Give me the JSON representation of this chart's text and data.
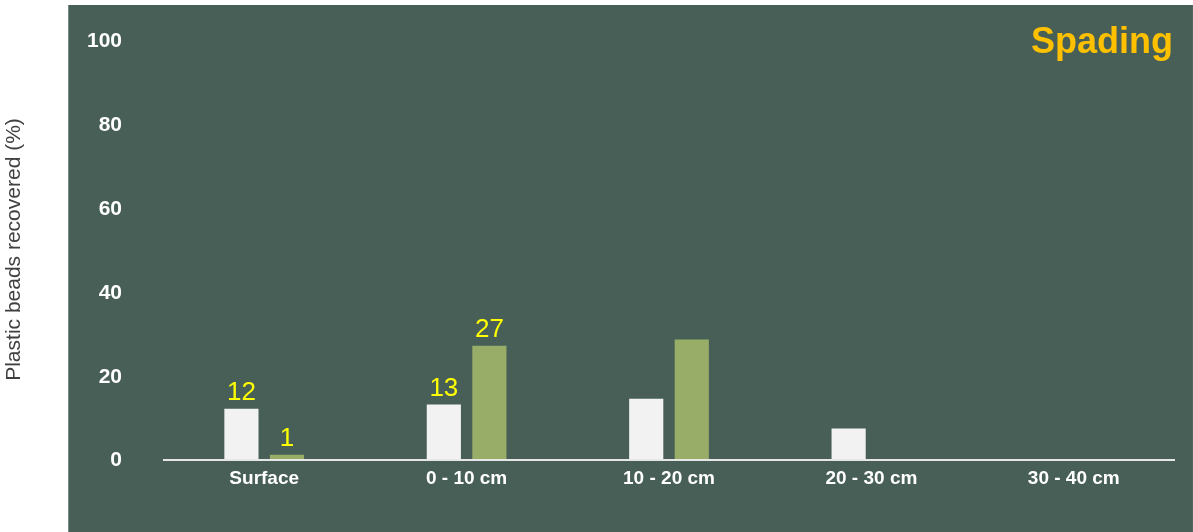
{
  "chart_data": {
    "type": "bar",
    "title": "Spading",
    "ylabel": "Plastic beads recovered (%)",
    "categories": [
      "Surface",
      "0 - 10 cm",
      "10 - 20 cm",
      "20 - 30 cm",
      "30 - 40 cm"
    ],
    "series": [
      {
        "color": "#f2f2f2",
        "values": [
          12,
          13,
          14.4,
          7.3,
          null
        ],
        "value_labels": [
          "12",
          "13",
          null,
          null,
          null
        ]
      },
      {
        "color": "#97ad68",
        "values": [
          1,
          27,
          28.5,
          null,
          null
        ],
        "value_labels": [
          "1",
          "27",
          null,
          null,
          null
        ]
      }
    ],
    "ylim": [
      0,
      100
    ],
    "yticks": [
      0,
      20,
      40,
      60,
      80,
      100
    ],
    "grid": false
  }
}
